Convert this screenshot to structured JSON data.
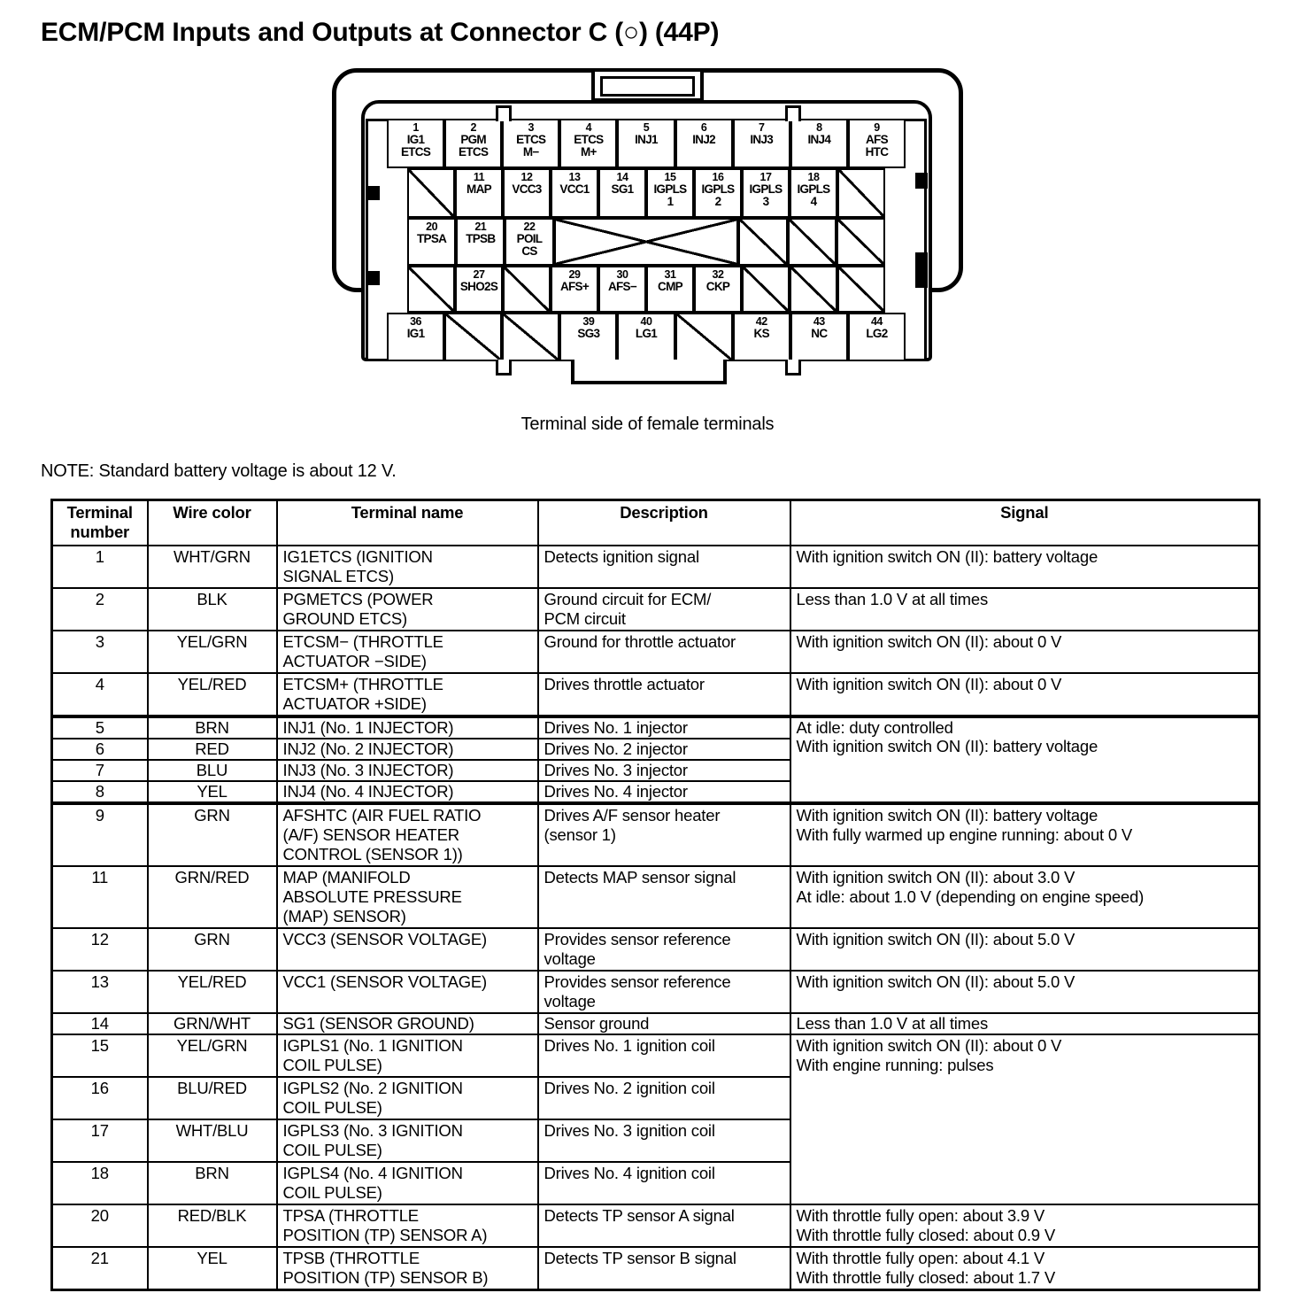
{
  "page": {
    "title": "ECM/PCM Inputs and Outputs at Connector C (○) (44P)",
    "caption": "Terminal side of female terminals",
    "note": "NOTE: Standard battery voltage is about 12 V."
  },
  "connector": {
    "rows": [
      {
        "cells": [
          {
            "n": "1",
            "l": "IG1\nETCS"
          },
          {
            "n": "2",
            "l": "PGM\nETCS"
          },
          {
            "n": "3",
            "l": "ETCS\nM−"
          },
          {
            "n": "4",
            "l": "ETCS\nM+"
          },
          {
            "n": "5",
            "l": "INJ1"
          },
          {
            "n": "6",
            "l": "INJ2"
          },
          {
            "n": "7",
            "l": "INJ3"
          },
          {
            "n": "8",
            "l": "INJ4"
          },
          {
            "n": "9",
            "l": "AFS\nHTC"
          }
        ]
      },
      {
        "cells": [
          {
            "h": 1
          },
          {
            "n": "11",
            "l": "MAP"
          },
          {
            "n": "12",
            "l": "VCC3"
          },
          {
            "n": "13",
            "l": "VCC1"
          },
          {
            "n": "14",
            "l": "SG1"
          },
          {
            "n": "15",
            "l": "IGPLS\n1"
          },
          {
            "n": "16",
            "l": "IGPLS\n2"
          },
          {
            "n": "17",
            "l": "IGPLS\n3"
          },
          {
            "n": "18",
            "l": "IGPLS\n4"
          },
          {
            "h": 1
          }
        ]
      },
      {
        "cells": [
          {
            "n": "20",
            "l": "TPSA"
          },
          {
            "n": "21",
            "l": "TPSB"
          },
          {
            "n": "22",
            "l": "POIL\nCS"
          },
          {
            "x": 1,
            "span": 4
          },
          {
            "h": 1
          },
          {
            "h": 1
          },
          {
            "h": 1
          }
        ]
      },
      {
        "cells": [
          {
            "h": 1
          },
          {
            "n": "27",
            "l": "SHO2S"
          },
          {
            "h": 1
          },
          {
            "n": "29",
            "l": "AFS+"
          },
          {
            "n": "30",
            "l": "AFS−"
          },
          {
            "n": "31",
            "l": "CMP"
          },
          {
            "n": "32",
            "l": "CKP"
          },
          {
            "h": 1
          },
          {
            "h": 1
          },
          {
            "h": 1
          }
        ]
      },
      {
        "cells": [
          {
            "n": "36",
            "l": "IG1"
          },
          {
            "h": 1
          },
          {
            "h": 1
          },
          {
            "n": "39",
            "l": "SG3"
          },
          {
            "n": "40",
            "l": "LG1"
          },
          {
            "h": 1
          },
          {
            "n": "42",
            "l": "KS"
          },
          {
            "n": "43",
            "l": "NC"
          },
          {
            "n": "44",
            "l": "LG2"
          }
        ]
      }
    ]
  },
  "table": {
    "headers": [
      "Terminal\nnumber",
      "Wire color",
      "Terminal name",
      "Description",
      "Signal"
    ],
    "rows": [
      {
        "terminal": "1",
        "wire": "WHT/GRN",
        "name": "IG1ETCS (IGNITION\nSIGNAL ETCS)",
        "desc": "Detects ignition signal",
        "signal": "With ignition switch ON (II): battery voltage"
      },
      {
        "terminal": "2",
        "wire": "BLK",
        "name": "PGMETCS (POWER\nGROUND ETCS)",
        "desc": "Ground circuit for ECM/\nPCM circuit",
        "signal": "Less than 1.0 V at all times"
      },
      {
        "terminal": "3",
        "wire": "YEL/GRN",
        "name": "ETCSM− (THROTTLE\nACTUATOR −SIDE)",
        "desc": "Ground for throttle actuator",
        "signal": "With ignition switch ON (II): about 0 V"
      },
      {
        "terminal": "4",
        "wire": "YEL/RED",
        "name": "ETCSM+ (THROTTLE\nACTUATOR +SIDE)",
        "desc": "Drives throttle actuator",
        "signal": "With ignition switch ON (II): about 0 V"
      },
      {
        "terminal": "5",
        "wire": "BRN",
        "name": "INJ1 (No. 1 INJECTOR)",
        "desc": "Drives No. 1 injector",
        "signal": "At idle: duty controlled\nWith ignition switch ON (II): battery voltage",
        "signal_rowspan": 4,
        "section_break": true
      },
      {
        "terminal": "6",
        "wire": "RED",
        "name": "INJ2 (No. 2 INJECTOR)",
        "desc": "Drives No. 2 injector"
      },
      {
        "terminal": "7",
        "wire": "BLU",
        "name": "INJ3 (No. 3 INJECTOR)",
        "desc": "Drives No. 3 injector"
      },
      {
        "terminal": "8",
        "wire": "YEL",
        "name": "INJ4 (No. 4 INJECTOR)",
        "desc": "Drives No. 4 injector"
      },
      {
        "terminal": "9",
        "wire": "GRN",
        "name": "AFSHTC (AIR FUEL RATIO\n(A/F) SENSOR HEATER\nCONTROL (SENSOR 1))",
        "desc": "Drives A/F sensor heater\n(sensor 1)",
        "signal": "With ignition switch ON (II): battery voltage\nWith fully warmed up engine running: about 0 V",
        "section_break": true
      },
      {
        "terminal": "11",
        "wire": "GRN/RED",
        "name": "MAP (MANIFOLD\nABSOLUTE PRESSURE\n(MAP) SENSOR)",
        "desc": "Detects MAP sensor signal",
        "signal": "With ignition switch ON (II): about 3.0 V\nAt idle: about 1.0 V (depending on engine speed)"
      },
      {
        "terminal": "12",
        "wire": "GRN",
        "name": "VCC3 (SENSOR VOLTAGE)",
        "desc": "Provides sensor reference\nvoltage",
        "signal": "With ignition switch ON (II): about 5.0 V"
      },
      {
        "terminal": "13",
        "wire": "YEL/RED",
        "name": "VCC1 (SENSOR VOLTAGE)",
        "desc": "Provides sensor reference\nvoltage",
        "signal": "With ignition switch ON (II): about 5.0 V"
      },
      {
        "terminal": "14",
        "wire": "GRN/WHT",
        "name": "SG1 (SENSOR GROUND)",
        "desc": "Sensor ground",
        "signal": "Less than 1.0 V at all times"
      },
      {
        "terminal": "15",
        "wire": "YEL/GRN",
        "name": "IGPLS1 (No. 1 IGNITION\nCOIL PULSE)",
        "desc": "Drives No. 1 ignition coil",
        "signal": "With ignition switch ON (II): about 0 V\nWith engine running: pulses",
        "signal_rowspan": 4
      },
      {
        "terminal": "16",
        "wire": "BLU/RED",
        "name": "IGPLS2 (No. 2 IGNITION\nCOIL PULSE)",
        "desc": "Drives No. 2 ignition coil"
      },
      {
        "terminal": "17",
        "wire": "WHT/BLU",
        "name": "IGPLS3 (No. 3 IGNITION\nCOIL PULSE)",
        "desc": "Drives No. 3 ignition coil"
      },
      {
        "terminal": "18",
        "wire": "BRN",
        "name": "IGPLS4 (No. 4 IGNITION\nCOIL PULSE)",
        "desc": "Drives No. 4 ignition coil"
      },
      {
        "terminal": "20",
        "wire": "RED/BLK",
        "name": "TPSA (THROTTLE\nPOSITION (TP) SENSOR A)",
        "desc": "Detects TP sensor A signal",
        "signal": "With throttle fully open: about 3.9 V\nWith throttle fully closed: about 0.9 V"
      },
      {
        "terminal": "21",
        "wire": "YEL",
        "name": "TPSB (THROTTLE\nPOSITION (TP) SENSOR B)",
        "desc": "Detects TP sensor B signal",
        "signal": "With throttle fully open: about 4.1 V\nWith throttle fully closed: about 1.7 V"
      }
    ]
  }
}
